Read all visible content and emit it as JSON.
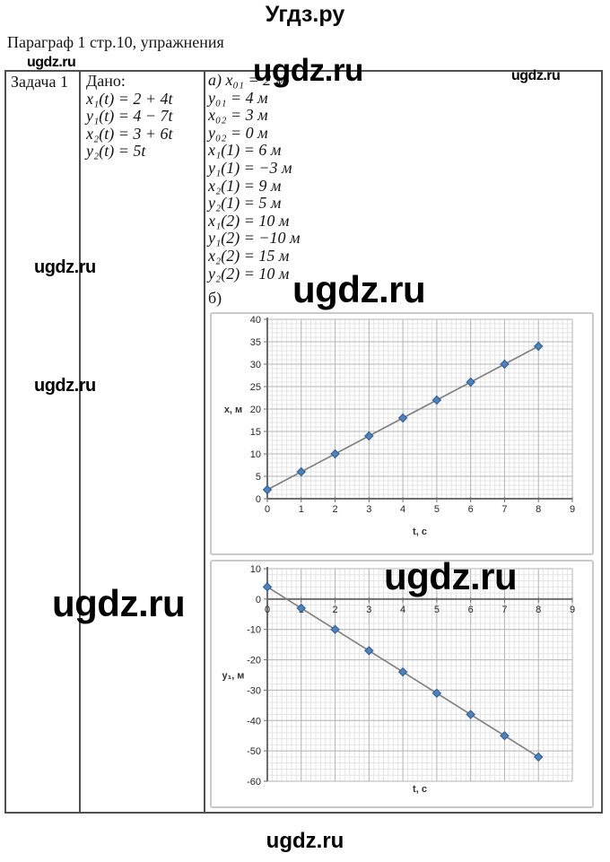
{
  "page": {
    "title": "Угдз.ру",
    "subtitle": "Параграф 1 стр.10, упражнения",
    "watermark": "ugdz.ru",
    "footer": "ugdz.ru"
  },
  "table": {
    "task_label": "Задача 1",
    "given": {
      "header": "Дано:",
      "equations": [
        "x₁(t) = 2 + 4t",
        "y₁(t) = 4 − 7t",
        "x₂(t) = 3 + 6t",
        "y₂(t) = 5t"
      ]
    },
    "solution": {
      "part_a_lines": [
        "а) x₀₁ = 2 м",
        "y₀₁ = 4 м",
        "x₀₂ = 3 м",
        "y₀₂ = 0 м",
        "x₁(1) = 6 м",
        "y₁(1) = −3 м",
        "x₂(1) = 9 м",
        "y₂(1) = 5 м",
        "x₁(2) = 10 м",
        "y₁(2) = −10 м",
        "x₂(2) = 15 м",
        "y₂(2) = 10 м"
      ],
      "part_b_label": "б)"
    }
  },
  "chart_data": [
    {
      "type": "line",
      "title": "",
      "xlabel": "t, с",
      "ylabel": "х, м",
      "x": [
        0,
        1,
        2,
        3,
        4,
        5,
        6,
        7,
        8
      ],
      "series": [
        {
          "name": "x₁(t) = 2 + 4t",
          "values": [
            2,
            6,
            10,
            14,
            18,
            22,
            26,
            30,
            34
          ]
        }
      ],
      "xlim": [
        0,
        9
      ],
      "ylim": [
        0,
        40
      ],
      "xticks": [
        0,
        1,
        2,
        3,
        4,
        5,
        6,
        7,
        8,
        9
      ],
      "yticks": [
        0,
        5,
        10,
        15,
        20,
        25,
        30,
        35,
        40
      ],
      "grid": "major+minor",
      "legend": "none",
      "marker": "diamond",
      "colors": {
        "marker": "#4f81bd",
        "marker_edge": "#2e5b8f",
        "line": "#7f7f7f"
      }
    },
    {
      "type": "line",
      "title": "",
      "xlabel": "t, с",
      "ylabel": "у₁, м",
      "x": [
        0,
        1,
        2,
        3,
        4,
        5,
        6,
        7,
        8
      ],
      "series": [
        {
          "name": "y₁(t) = 4 − 7t",
          "values": [
            4,
            -3,
            -10,
            -17,
            -24,
            -31,
            -38,
            -45,
            -52
          ]
        }
      ],
      "xlim": [
        0,
        9
      ],
      "ylim": [
        -60,
        10
      ],
      "xticks": [
        0,
        1,
        2,
        3,
        4,
        5,
        6,
        7,
        8,
        9
      ],
      "yticks": [
        10,
        0,
        -10,
        -20,
        -30,
        -40,
        -50,
        -60
      ],
      "grid": "major+minor",
      "legend": "none",
      "marker": "diamond",
      "colors": {
        "marker": "#4f81bd",
        "marker_edge": "#2e5b8f",
        "line": "#7f7f7f"
      }
    }
  ]
}
